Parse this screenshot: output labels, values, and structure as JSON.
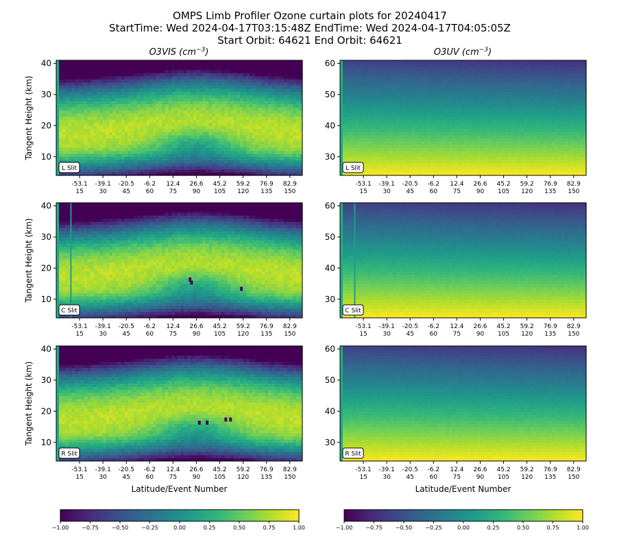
{
  "figure": {
    "title_lines": [
      "OMPS Limb Profiler Ozone curtain plots for 20240417",
      "StartTime: Wed 2024-04-17T03:15:48Z  EndTime: Wed 2024-04-17T04:05:05Z",
      "Start Orbit: 64621 End Orbit: 64621"
    ],
    "columns": [
      {
        "title_main": "O3VIS (",
        "title_unit": "cm",
        "title_exp": "−3",
        "title_close": ")"
      },
      {
        "title_main": "O3UV (",
        "title_unit": "cm",
        "title_exp": "−3",
        "title_close": ")"
      }
    ],
    "ylabel": "Tangent Height (km)",
    "xlabel": "Latitude/Event Number",
    "slits": [
      "L Slit",
      "C Slit",
      "R Slit"
    ]
  },
  "colors": {
    "viridis": [
      "#440154",
      "#482878",
      "#3e4989",
      "#31688e",
      "#26828e",
      "#1f9e89",
      "#35b779",
      "#6ece58",
      "#b5de2b",
      "#fde725"
    ]
  },
  "chart_data": [
    {
      "type": "heatmap",
      "panel": "O3VIS L Slit",
      "x_tick_labels_lat": [
        "-53.1",
        "-39.1",
        "-20.5",
        "-6.2",
        "12.4",
        "26.6",
        "45.2",
        "59.2",
        "76.9",
        "82.9"
      ],
      "x_tick_labels_event": [
        "15",
        "30",
        "45",
        "60",
        "75",
        "90",
        "105",
        "120",
        "135",
        "150"
      ],
      "x_ticks": [
        15,
        30,
        45,
        60,
        75,
        90,
        105,
        120,
        135,
        150
      ],
      "xlim": [
        0,
        158
      ],
      "ylim": [
        4,
        41
      ],
      "y_ticks": [
        10,
        20,
        30,
        40
      ],
      "ylabel": "Tangent Height (km)",
      "colorscale": "viridis",
      "clim": [
        -1,
        1
      ]
    },
    {
      "type": "heatmap",
      "panel": "O3UV L Slit",
      "x_tick_labels_lat": [
        "-53.1",
        "-39.1",
        "-20.5",
        "-6.2",
        "12.4",
        "26.6",
        "45.2",
        "59.2",
        "76.9",
        "82.9"
      ],
      "x_tick_labels_event": [
        "15",
        "30",
        "45",
        "60",
        "75",
        "90",
        "105",
        "120",
        "135",
        "150"
      ],
      "x_ticks": [
        15,
        30,
        45,
        60,
        75,
        90,
        105,
        120,
        135,
        150
      ],
      "xlim": [
        0,
        158
      ],
      "ylim": [
        24,
        61
      ],
      "y_ticks": [
        30,
        40,
        50,
        60
      ],
      "colorscale": "viridis",
      "clim": [
        -1,
        1
      ]
    },
    {
      "type": "heatmap",
      "panel": "O3VIS C Slit",
      "x_tick_labels_lat": [
        "-53.1",
        "-39.1",
        "-20.5",
        "-6.2",
        "12.4",
        "26.6",
        "45.2",
        "59.2",
        "76.9",
        "82.9"
      ],
      "x_tick_labels_event": [
        "15",
        "30",
        "45",
        "60",
        "75",
        "90",
        "105",
        "120",
        "135",
        "150"
      ],
      "x_ticks": [
        15,
        30,
        45,
        60,
        75,
        90,
        105,
        120,
        135,
        150
      ],
      "xlim": [
        0,
        158
      ],
      "ylim": [
        4,
        41
      ],
      "y_ticks": [
        10,
        20,
        30,
        40
      ],
      "ylabel": "Tangent Height (km)",
      "colorscale": "viridis",
      "clim": [
        -1,
        1
      ]
    },
    {
      "type": "heatmap",
      "panel": "O3UV C Slit",
      "x_tick_labels_lat": [
        "-53.1",
        "-39.1",
        "-20.5",
        "-6.2",
        "12.4",
        "26.6",
        "45.2",
        "59.2",
        "76.9",
        "82.9"
      ],
      "x_tick_labels_event": [
        "15",
        "30",
        "45",
        "60",
        "75",
        "90",
        "105",
        "120",
        "135",
        "150"
      ],
      "x_ticks": [
        15,
        30,
        45,
        60,
        75,
        90,
        105,
        120,
        135,
        150
      ],
      "xlim": [
        0,
        158
      ],
      "ylim": [
        24,
        61
      ],
      "y_ticks": [
        30,
        40,
        50,
        60
      ],
      "colorscale": "viridis",
      "clim": [
        -1,
        1
      ]
    },
    {
      "type": "heatmap",
      "panel": "O3VIS R Slit",
      "x_tick_labels_lat": [
        "-53.1",
        "-39.1",
        "-20.5",
        "-6.2",
        "12.4",
        "26.6",
        "45.2",
        "59.2",
        "76.9",
        "82.9"
      ],
      "x_tick_labels_event": [
        "15",
        "30",
        "45",
        "60",
        "75",
        "90",
        "105",
        "120",
        "135",
        "150"
      ],
      "x_ticks": [
        15,
        30,
        45,
        60,
        75,
        90,
        105,
        120,
        135,
        150
      ],
      "xlim": [
        0,
        158
      ],
      "ylim": [
        4,
        41
      ],
      "y_ticks": [
        10,
        20,
        30,
        40
      ],
      "ylabel": "Tangent Height (km)",
      "xlabel": "Latitude/Event Number",
      "colorscale": "viridis",
      "clim": [
        -1,
        1
      ]
    },
    {
      "type": "heatmap",
      "panel": "O3UV R Slit",
      "x_tick_labels_lat": [
        "-53.1",
        "-39.1",
        "-20.5",
        "-6.2",
        "12.4",
        "26.6",
        "45.2",
        "59.2",
        "76.9",
        "82.9"
      ],
      "x_tick_labels_event": [
        "15",
        "30",
        "45",
        "60",
        "75",
        "90",
        "105",
        "120",
        "135",
        "150"
      ],
      "x_ticks": [
        15,
        30,
        45,
        60,
        75,
        90,
        105,
        120,
        135,
        150
      ],
      "xlim": [
        0,
        158
      ],
      "ylim": [
        24,
        61
      ],
      "y_ticks": [
        30,
        40,
        50,
        60
      ],
      "xlabel": "Latitude/Event Number",
      "colorscale": "viridis",
      "clim": [
        -1,
        1
      ]
    },
    {
      "type": "colorbar",
      "colorscale": "viridis",
      "range": [
        -1,
        1
      ],
      "ticks": [
        -1.0,
        -0.75,
        -0.5,
        -0.25,
        0.0,
        0.25,
        0.5,
        0.75,
        1.0
      ],
      "tick_labels": [
        "−1.00",
        "−0.75",
        "−0.50",
        "−0.25",
        "0.00",
        "0.25",
        "0.50",
        "0.75",
        "1.00"
      ]
    }
  ]
}
